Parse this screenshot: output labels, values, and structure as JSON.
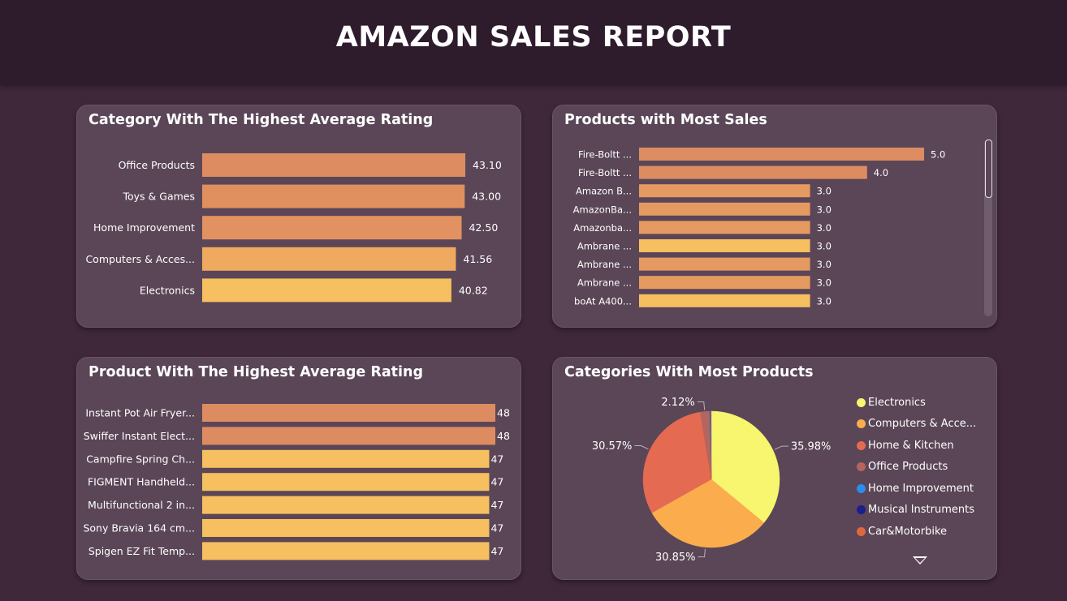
{
  "header": {
    "title": "AMAZON SALES REPORT"
  },
  "colors": {
    "bar_orange": "#dd8c62",
    "bar_mid": "#eea366",
    "bar_yellow": "#f6bf60",
    "card_bg": "#5a4657",
    "page_bg": "#3f2839"
  },
  "chart_data": [
    {
      "id": "category-rating",
      "type": "bar",
      "orientation": "horizontal",
      "title": "Category With The Highest Average Rating",
      "categories": [
        "Office Products",
        "Toys & Games",
        "Home Improvement",
        "Computers & Acces...",
        "Electronics"
      ],
      "values": [
        43.1,
        43.0,
        42.5,
        41.56,
        40.82
      ],
      "value_labels": [
        "43.10",
        "43.00",
        "42.50",
        "41.56",
        "40.82"
      ],
      "bar_colors": [
        "#dd8c62",
        "#e0905f",
        "#e29261",
        "#efaa60",
        "#f6bf60"
      ],
      "xlim": [
        0,
        43.1
      ]
    },
    {
      "id": "product-sales",
      "type": "bar",
      "orientation": "horizontal",
      "title": "Products with Most Sales",
      "categories": [
        "Fire-Boltt ...",
        "Fire-Boltt ...",
        "Amazon B...",
        "AmazonBa...",
        "Amazonba...",
        "Ambrane ...",
        "Ambrane ...",
        "Ambrane ...",
        "boAt A400..."
      ],
      "values": [
        5.0,
        4.0,
        3.0,
        3.0,
        3.0,
        3.0,
        3.0,
        3.0,
        3.0
      ],
      "value_labels": [
        "5.0",
        "4.0",
        "3.0",
        "3.0",
        "3.0",
        "3.0",
        "3.0",
        "3.0",
        "3.0"
      ],
      "bar_colors": [
        "#dd8c62",
        "#dd8c62",
        "#e59a62",
        "#e59a62",
        "#e59a62",
        "#f6bf60",
        "#e59a62",
        "#e59a62",
        "#f6bf60"
      ],
      "xlim": [
        0,
        5.0
      ]
    },
    {
      "id": "product-rating",
      "type": "bar",
      "orientation": "horizontal",
      "title": "Product With The Highest Average Rating",
      "categories": [
        "Instant Pot Air Fryer...",
        "Swiffer Instant Elect...",
        "Campfire Spring Ch...",
        "FIGMENT Handheld...",
        "Multifunctional 2 in...",
        "Sony Bravia 164 cm...",
        "Spigen EZ Fit Temp..."
      ],
      "values": [
        48,
        48,
        47,
        47,
        47,
        47,
        47
      ],
      "value_labels": [
        "48",
        "48",
        "47",
        "47",
        "47",
        "47",
        "47"
      ],
      "bar_colors": [
        "#dd8c62",
        "#dd8c62",
        "#f6bf60",
        "#f6bf60",
        "#f6bf60",
        "#f6bf60",
        "#f6bf60"
      ],
      "xlim": [
        0,
        48
      ]
    },
    {
      "id": "category-products",
      "type": "pie",
      "title": "Categories With Most Products",
      "slices": [
        {
          "name": "Electronics",
          "value": 35.98,
          "label": "35.98%",
          "color": "#f8f56f"
        },
        {
          "name": "Computers & Acce...",
          "value": 30.85,
          "label": "30.85%",
          "color": "#fbad4d"
        },
        {
          "name": "Home & Kitchen",
          "value": 30.57,
          "label": "30.57%",
          "color": "#e56a52"
        },
        {
          "name": "Office Products",
          "value": 2.12,
          "label": "2.12%",
          "color": "#b5655c"
        },
        {
          "name": "Home Improvement",
          "value": 0.24,
          "label": "",
          "color": "#2b8cf0"
        },
        {
          "name": "Musical Instruments",
          "value": 0.12,
          "label": "",
          "color": "#1a1f8c"
        },
        {
          "name": "Car&Motorbike",
          "value": 0.12,
          "label": "",
          "color": "#e0683e"
        }
      ],
      "legend": [
        "Electronics",
        "Computers & Acce...",
        "Home & Kitchen",
        "Office Products",
        "Home Improvement",
        "Musical Instruments",
        "Car&Motorbike"
      ],
      "legend_position": "right"
    }
  ]
}
